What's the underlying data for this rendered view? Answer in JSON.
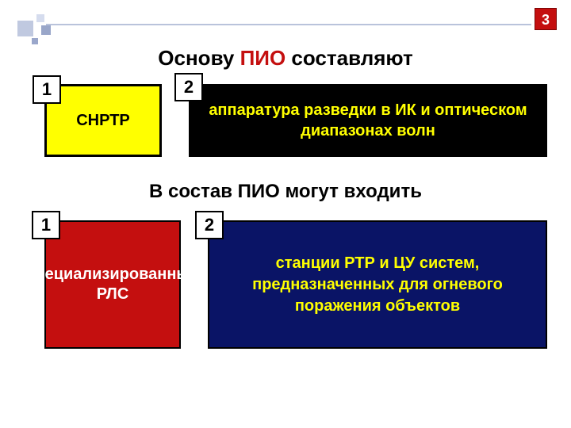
{
  "page_number": "3",
  "decoration": {
    "square_colors": [
      "#c0c9e0",
      "#d5dcee",
      "#99a6c9",
      "#9aa7cb"
    ],
    "line_color": "#b9c3db"
  },
  "title1": {
    "pre": "Основу ",
    "accent": "ПИО",
    "post": " составляют",
    "accent_color": "#c40f0f",
    "fontsize": 26
  },
  "row1": {
    "item1": {
      "num": "1",
      "text": "СНРТР",
      "bg": "#ffff00",
      "text_color": "#000000",
      "border_color": "#000000"
    },
    "item2": {
      "num": "2",
      "text": "аппаратура разведки в ИК и оптическом диапазонах волн",
      "bg": "#000000",
      "text_color": "#ffff00"
    }
  },
  "title2": {
    "text": "В состав ПИО могут входить",
    "fontsize": 24
  },
  "row2": {
    "item1": {
      "num": "1",
      "text": "специализированные РЛС",
      "bg": "#c40f0f",
      "text_color": "#ffffff",
      "border_color": "#000000"
    },
    "item2": {
      "num": "2",
      "text": "станции РТР и ЦУ систем, предназначенных для огневого поражения объектов",
      "bg": "#0a1466",
      "text_color": "#ffff00",
      "border_color": "#000000"
    }
  },
  "badge": {
    "bg": "#ffffff",
    "border": "#000000",
    "text_color": "#000000"
  }
}
